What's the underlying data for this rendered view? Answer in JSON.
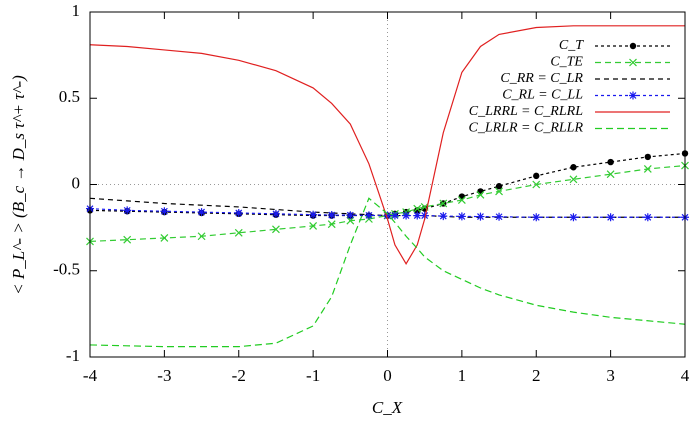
{
  "chart_data": {
    "type": "line",
    "x_label": "C_X",
    "y_label": "< P_L^- > (B_c → D_s τ^+ τ^-)",
    "x": [
      -4,
      -3.5,
      -3,
      -2.5,
      -2,
      -1.5,
      -1,
      -0.75,
      -0.5,
      -0.25,
      0,
      0.1,
      0.25,
      0.4,
      0.5,
      0.75,
      1,
      1.25,
      1.5,
      2,
      2.5,
      3,
      3.5,
      4
    ],
    "series": [
      {
        "name": "C_T",
        "color": "#000000",
        "dash": "3,3",
        "marker": "dot",
        "values": [
          -0.15,
          -0.155,
          -0.16,
          -0.165,
          -0.17,
          -0.175,
          -0.18,
          -0.18,
          -0.18,
          -0.18,
          -0.18,
          -0.17,
          -0.16,
          -0.15,
          -0.14,
          -0.11,
          -0.07,
          -0.04,
          -0.01,
          0.05,
          0.1,
          0.13,
          0.16,
          0.18
        ]
      },
      {
        "name": "C_TE",
        "color": "#33cc33",
        "dash": "6,4",
        "marker": "x",
        "values": [
          -0.33,
          -0.32,
          -0.31,
          -0.3,
          -0.28,
          -0.26,
          -0.24,
          -0.23,
          -0.21,
          -0.2,
          -0.18,
          -0.17,
          -0.16,
          -0.14,
          -0.13,
          -0.11,
          -0.09,
          -0.06,
          -0.04,
          0,
          0.03,
          0.06,
          0.09,
          0.11
        ]
      },
      {
        "name": "C_RR = C_LR",
        "color": "#000000",
        "dash": "5,4",
        "marker": "none",
        "values": [
          -0.08,
          -0.095,
          -0.11,
          -0.12,
          -0.13,
          -0.145,
          -0.16,
          -0.165,
          -0.17,
          -0.175,
          -0.18,
          -0.18,
          -0.18,
          -0.18,
          -0.18,
          -0.185,
          -0.19,
          -0.19,
          -0.19,
          -0.19,
          -0.19,
          -0.19,
          -0.19,
          -0.19
        ]
      },
      {
        "name": "C_RL = C_LL",
        "color": "#1a1aee",
        "dash": "3,3",
        "marker": "star",
        "values": [
          -0.14,
          -0.15,
          -0.155,
          -0.16,
          -0.165,
          -0.17,
          -0.175,
          -0.177,
          -0.178,
          -0.179,
          -0.18,
          -0.18,
          -0.18,
          -0.18,
          -0.18,
          -0.183,
          -0.185,
          -0.186,
          -0.187,
          -0.19,
          -0.19,
          -0.19,
          -0.19,
          -0.19
        ]
      },
      {
        "name": "C_LRRL = C_RLRL",
        "color": "#e02020",
        "dash": "none",
        "marker": "none",
        "values": [
          0.81,
          0.8,
          0.78,
          0.76,
          0.72,
          0.66,
          0.56,
          0.47,
          0.35,
          0.12,
          -0.2,
          -0.35,
          -0.46,
          -0.35,
          -0.2,
          0.3,
          0.65,
          0.8,
          0.87,
          0.91,
          0.92,
          0.92,
          0.92,
          0.92
        ]
      },
      {
        "name": "C_LRLR = C_RLLR",
        "color": "#22cc22",
        "dash": "7,4",
        "marker": "none",
        "values": [
          -0.93,
          -0.935,
          -0.94,
          -0.94,
          -0.94,
          -0.92,
          -0.82,
          -0.65,
          -0.35,
          -0.08,
          -0.17,
          -0.22,
          -0.3,
          -0.37,
          -0.42,
          -0.5,
          -0.55,
          -0.6,
          -0.64,
          -0.7,
          -0.74,
          -0.77,
          -0.79,
          -0.81
        ]
      }
    ],
    "xlim": [
      -4,
      4
    ],
    "ylim": [
      -1,
      1
    ],
    "xticks": [
      -4,
      -3,
      -2,
      -1,
      0,
      1,
      2,
      3,
      4
    ],
    "yticks": [
      -1,
      -0.5,
      0,
      0.5,
      1
    ],
    "zeroaxis": true,
    "legend": "top-right"
  }
}
